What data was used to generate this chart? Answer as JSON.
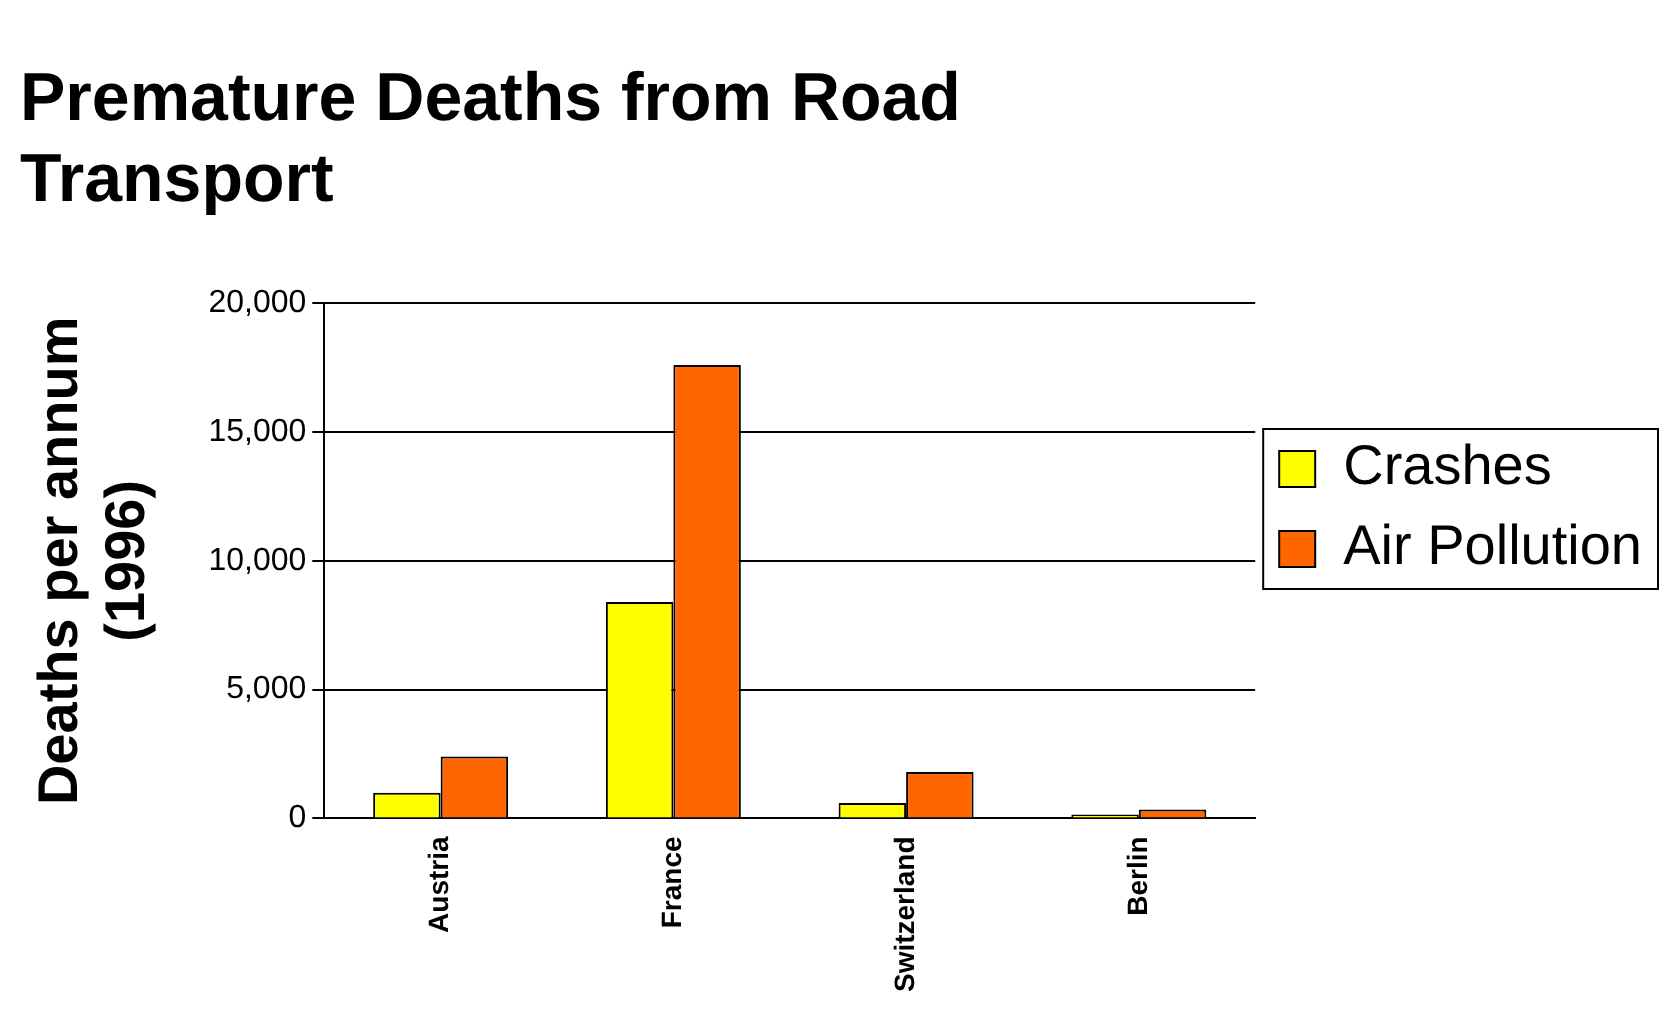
{
  "chart_data": {
    "type": "bar",
    "title": "Premature Deaths from Road Transport",
    "ylabel": "Deaths per annum (1996)",
    "categories": [
      "Austria",
      "France",
      "Switzerland",
      "Berlin"
    ],
    "series": [
      {
        "name": "Crashes",
        "color": "#ffff00",
        "values": [
          1000,
          8400,
          600,
          150
        ]
      },
      {
        "name": "Air Pollution",
        "color": "#ff6600",
        "values": [
          2400,
          17600,
          1800,
          350
        ]
      }
    ],
    "ylim": [
      0,
      20000
    ],
    "yticks": [
      0,
      {
        "value": 5000,
        "label": "5,000"
      },
      {
        "value": 10000,
        "label": "10,000"
      },
      {
        "value": 15000,
        "label": "15,000"
      },
      {
        "value": 20000,
        "label": "20,000"
      }
    ],
    "grid": "y",
    "legend": "right"
  }
}
